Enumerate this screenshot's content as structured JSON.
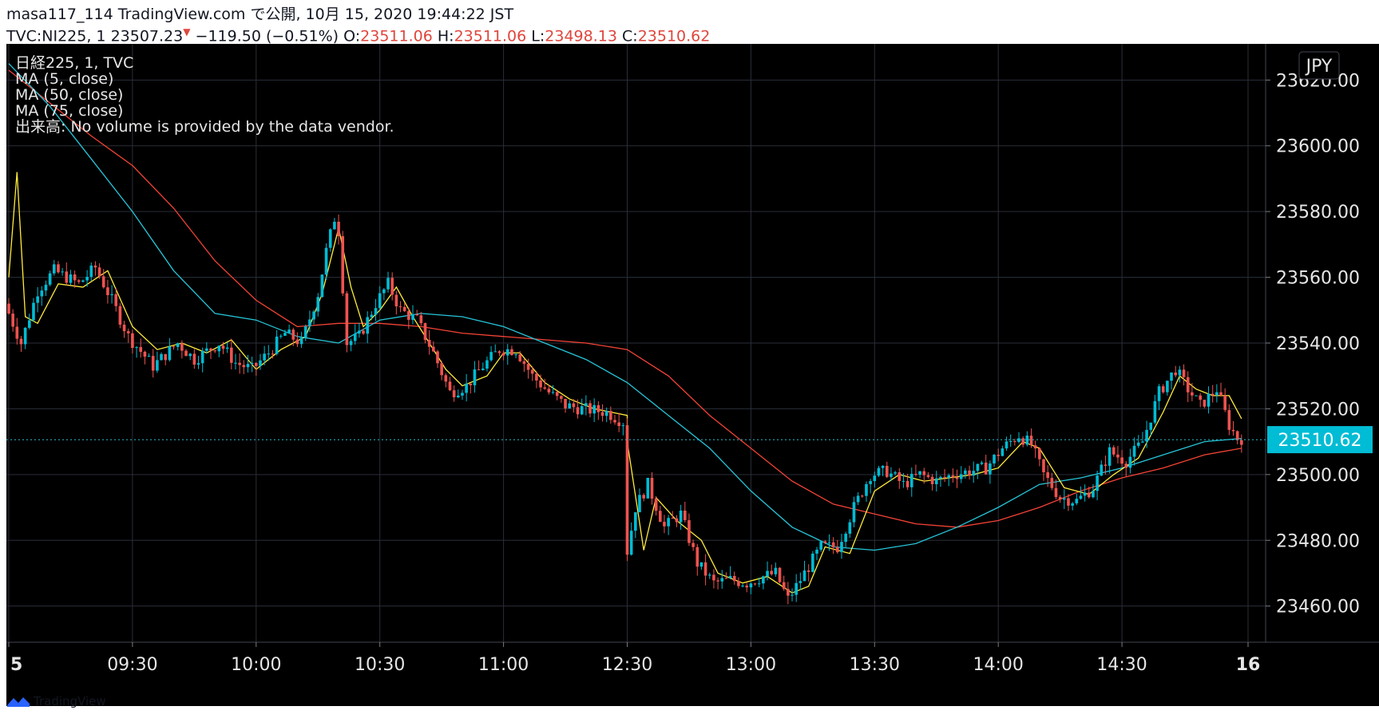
{
  "header": {
    "line1": "masa117_114 TradingView.com で公開, 10月 15, 2020 19:44:22 JST",
    "symbol": "TVC:NI225, 1",
    "price": "23507.23",
    "change": "−119.50 (−0.51%)",
    "o_label": "O:",
    "o": "23511.06",
    "h_label": "H:",
    "h": "23511.06",
    "l_label": "L:",
    "l": "23498.13",
    "c_label": "C:",
    "c": "23510.62"
  },
  "legend": [
    "日経225, 1, TVC",
    "MA (5, close)",
    "MA (50, close)",
    "MA (75, close)",
    "出来高: No volume is provided by the data vendor."
  ],
  "currency_label": "JPY",
  "last_price_label": "23510.62",
  "footer": {
    "brand": "TradingView"
  },
  "colors": {
    "background": "#000000",
    "up": "#00bcd4",
    "down": "#ef5350",
    "ma5": "#ffeb3b",
    "ma50": "#26c6da",
    "ma75": "#f44336",
    "grid": "#2a2e39"
  },
  "chart_data": {
    "type": "candlestick",
    "title": "日経225, 1, TVC",
    "x_tick_labels": [
      "5",
      "09:30",
      "10:00",
      "10:30",
      "11:00",
      "12:30",
      "13:00",
      "13:30",
      "14:00",
      "14:30",
      "16"
    ],
    "y_tick_labels": [
      "23620.00",
      "23600.00",
      "23580.00",
      "23560.00",
      "23540.00",
      "23520.00",
      "23500.00",
      "23480.00",
      "23460.00"
    ],
    "ylim": [
      23449,
      23631
    ],
    "last_price": 23510.62,
    "anchors": [
      {
        "t": "09:00",
        "v": 23552
      },
      {
        "t": "09:04",
        "v": 23540
      },
      {
        "t": "09:08",
        "v": 23556
      },
      {
        "t": "09:12",
        "v": 23562
      },
      {
        "t": "09:18",
        "v": 23558
      },
      {
        "t": "09:22",
        "v": 23563
      },
      {
        "t": "09:26",
        "v": 23553
      },
      {
        "t": "09:30",
        "v": 23542
      },
      {
        "t": "09:36",
        "v": 23533
      },
      {
        "t": "09:42",
        "v": 23540
      },
      {
        "t": "09:46",
        "v": 23535
      },
      {
        "t": "09:52",
        "v": 23540
      },
      {
        "t": "09:56",
        "v": 23534
      },
      {
        "t": "10:00",
        "v": 23532
      },
      {
        "t": "10:04",
        "v": 23537
      },
      {
        "t": "10:08",
        "v": 23543
      },
      {
        "t": "10:12",
        "v": 23540
      },
      {
        "t": "10:16",
        "v": 23555
      },
      {
        "t": "10:18",
        "v": 23568
      },
      {
        "t": "10:20",
        "v": 23578
      },
      {
        "t": "10:21",
        "v": 23574
      },
      {
        "t": "10:23",
        "v": 23540
      },
      {
        "t": "10:26",
        "v": 23542
      },
      {
        "t": "10:30",
        "v": 23552
      },
      {
        "t": "10:33",
        "v": 23558
      },
      {
        "t": "10:36",
        "v": 23550
      },
      {
        "t": "10:40",
        "v": 23547
      },
      {
        "t": "10:44",
        "v": 23537
      },
      {
        "t": "10:48",
        "v": 23525
      },
      {
        "t": "10:52",
        "v": 23527
      },
      {
        "t": "10:56",
        "v": 23533
      },
      {
        "t": "11:00",
        "v": 23538
      },
      {
        "t": "11:04",
        "v": 23538
      },
      {
        "t": "11:08",
        "v": 23530
      },
      {
        "t": "11:12",
        "v": 23525
      },
      {
        "t": "11:16",
        "v": 23521
      },
      {
        "t": "11:20",
        "v": 23520
      },
      {
        "t": "11:26",
        "v": 23519
      },
      {
        "t": "11:30",
        "v": 23516
      },
      {
        "t": "12:30",
        "v": 23470
      },
      {
        "t": "12:33",
        "v": 23490
      },
      {
        "t": "12:36",
        "v": 23497
      },
      {
        "t": "12:40",
        "v": 23484
      },
      {
        "t": "12:44",
        "v": 23488
      },
      {
        "t": "12:48",
        "v": 23473
      },
      {
        "t": "12:52",
        "v": 23467
      },
      {
        "t": "12:56",
        "v": 23468
      },
      {
        "t": "13:00",
        "v": 23467
      },
      {
        "t": "13:04",
        "v": 23469
      },
      {
        "t": "13:07",
        "v": 23470
      },
      {
        "t": "13:10",
        "v": 23462
      },
      {
        "t": "13:14",
        "v": 23470
      },
      {
        "t": "13:18",
        "v": 23478
      },
      {
        "t": "13:22",
        "v": 23478
      },
      {
        "t": "13:26",
        "v": 23490
      },
      {
        "t": "13:30",
        "v": 23500
      },
      {
        "t": "13:34",
        "v": 23501
      },
      {
        "t": "13:38",
        "v": 23497
      },
      {
        "t": "13:42",
        "v": 23500
      },
      {
        "t": "13:46",
        "v": 23498
      },
      {
        "t": "13:50",
        "v": 23500
      },
      {
        "t": "13:54",
        "v": 23501
      },
      {
        "t": "13:58",
        "v": 23502
      },
      {
        "t": "14:02",
        "v": 23508
      },
      {
        "t": "14:06",
        "v": 23512
      },
      {
        "t": "14:09",
        "v": 23509
      },
      {
        "t": "14:12",
        "v": 23500
      },
      {
        "t": "14:16",
        "v": 23493
      },
      {
        "t": "14:20",
        "v": 23492
      },
      {
        "t": "14:24",
        "v": 23496
      },
      {
        "t": "14:28",
        "v": 23507
      },
      {
        "t": "14:32",
        "v": 23504
      },
      {
        "t": "14:36",
        "v": 23510
      },
      {
        "t": "14:40",
        "v": 23525
      },
      {
        "t": "14:44",
        "v": 23532
      },
      {
        "t": "14:47",
        "v": 23526
      },
      {
        "t": "14:50",
        "v": 23521
      },
      {
        "t": "14:54",
        "v": 23526
      },
      {
        "t": "14:57",
        "v": 23515
      },
      {
        "t": "14:59",
        "v": 23511
      }
    ],
    "ma5": [
      {
        "t": "09:00",
        "v": 23560
      },
      {
        "t": "09:02",
        "v": 23592
      },
      {
        "t": "09:04",
        "v": 23548
      },
      {
        "t": "09:07",
        "v": 23546
      },
      {
        "t": "09:12",
        "v": 23558
      },
      {
        "t": "09:18",
        "v": 23557
      },
      {
        "t": "09:24",
        "v": 23562
      },
      {
        "t": "09:30",
        "v": 23545
      },
      {
        "t": "09:36",
        "v": 23538
      },
      {
        "t": "09:42",
        "v": 23540
      },
      {
        "t": "09:48",
        "v": 23537
      },
      {
        "t": "09:54",
        "v": 23541
      },
      {
        "t": "10:00",
        "v": 23532
      },
      {
        "t": "10:06",
        "v": 23538
      },
      {
        "t": "10:12",
        "v": 23542
      },
      {
        "t": "10:16",
        "v": 23555
      },
      {
        "t": "10:20",
        "v": 23575
      },
      {
        "t": "10:23",
        "v": 23557
      },
      {
        "t": "10:26",
        "v": 23545
      },
      {
        "t": "10:30",
        "v": 23550
      },
      {
        "t": "10:34",
        "v": 23557
      },
      {
        "t": "10:38",
        "v": 23548
      },
      {
        "t": "10:42",
        "v": 23540
      },
      {
        "t": "10:46",
        "v": 23532
      },
      {
        "t": "10:50",
        "v": 23527
      },
      {
        "t": "10:56",
        "v": 23530
      },
      {
        "t": "11:00",
        "v": 23537
      },
      {
        "t": "11:04",
        "v": 23537
      },
      {
        "t": "11:10",
        "v": 23528
      },
      {
        "t": "11:16",
        "v": 23523
      },
      {
        "t": "11:22",
        "v": 23520
      },
      {
        "t": "11:30",
        "v": 23518
      },
      {
        "t": "12:30",
        "v": 23510
      },
      {
        "t": "12:34",
        "v": 23477
      },
      {
        "t": "12:37",
        "v": 23493
      },
      {
        "t": "12:42",
        "v": 23486
      },
      {
        "t": "12:48",
        "v": 23480
      },
      {
        "t": "12:52",
        "v": 23470
      },
      {
        "t": "12:58",
        "v": 23467
      },
      {
        "t": "13:04",
        "v": 23469
      },
      {
        "t": "13:10",
        "v": 23464
      },
      {
        "t": "13:14",
        "v": 23466
      },
      {
        "t": "13:18",
        "v": 23478
      },
      {
        "t": "13:24",
        "v": 23476
      },
      {
        "t": "13:30",
        "v": 23495
      },
      {
        "t": "13:36",
        "v": 23500
      },
      {
        "t": "13:42",
        "v": 23498
      },
      {
        "t": "13:48",
        "v": 23499
      },
      {
        "t": "13:54",
        "v": 23500
      },
      {
        "t": "14:00",
        "v": 23502
      },
      {
        "t": "14:06",
        "v": 23510
      },
      {
        "t": "14:10",
        "v": 23508
      },
      {
        "t": "14:16",
        "v": 23496
      },
      {
        "t": "14:22",
        "v": 23494
      },
      {
        "t": "14:28",
        "v": 23500
      },
      {
        "t": "14:34",
        "v": 23505
      },
      {
        "t": "14:40",
        "v": 23519
      },
      {
        "t": "14:44",
        "v": 23530
      },
      {
        "t": "14:48",
        "v": 23526
      },
      {
        "t": "14:52",
        "v": 23524
      },
      {
        "t": "14:56",
        "v": 23524
      },
      {
        "t": "14:59",
        "v": 23517
      }
    ],
    "ma50": [
      {
        "t": "09:00",
        "v": 23625
      },
      {
        "t": "09:10",
        "v": 23612
      },
      {
        "t": "09:20",
        "v": 23596
      },
      {
        "t": "09:30",
        "v": 23580
      },
      {
        "t": "09:40",
        "v": 23562
      },
      {
        "t": "09:50",
        "v": 23549
      },
      {
        "t": "10:00",
        "v": 23547
      },
      {
        "t": "10:10",
        "v": 23542
      },
      {
        "t": "10:20",
        "v": 23540
      },
      {
        "t": "10:30",
        "v": 23547
      },
      {
        "t": "10:40",
        "v": 23549
      },
      {
        "t": "10:50",
        "v": 23548
      },
      {
        "t": "11:00",
        "v": 23545
      },
      {
        "t": "11:10",
        "v": 23540
      },
      {
        "t": "11:20",
        "v": 23535
      },
      {
        "t": "11:30",
        "v": 23528
      },
      {
        "t": "12:30",
        "v": 23528
      },
      {
        "t": "12:40",
        "v": 23518
      },
      {
        "t": "12:50",
        "v": 23508
      },
      {
        "t": "13:00",
        "v": 23495
      },
      {
        "t": "13:10",
        "v": 23484
      },
      {
        "t": "13:20",
        "v": 23478
      },
      {
        "t": "13:30",
        "v": 23477
      },
      {
        "t": "13:40",
        "v": 23479
      },
      {
        "t": "13:50",
        "v": 23484
      },
      {
        "t": "14:00",
        "v": 23490
      },
      {
        "t": "14:10",
        "v": 23497
      },
      {
        "t": "14:20",
        "v": 23499
      },
      {
        "t": "14:30",
        "v": 23502
      },
      {
        "t": "14:40",
        "v": 23506
      },
      {
        "t": "14:50",
        "v": 23510
      },
      {
        "t": "14:59",
        "v": 23511
      }
    ],
    "ma75": [
      {
        "t": "09:00",
        "v": 23623
      },
      {
        "t": "09:10",
        "v": 23613
      },
      {
        "t": "09:20",
        "v": 23603
      },
      {
        "t": "09:30",
        "v": 23594
      },
      {
        "t": "09:40",
        "v": 23581
      },
      {
        "t": "09:50",
        "v": 23565
      },
      {
        "t": "10:00",
        "v": 23553
      },
      {
        "t": "10:10",
        "v": 23545
      },
      {
        "t": "10:20",
        "v": 23546
      },
      {
        "t": "10:30",
        "v": 23546
      },
      {
        "t": "10:40",
        "v": 23545
      },
      {
        "t": "10:50",
        "v": 23543
      },
      {
        "t": "11:00",
        "v": 23542
      },
      {
        "t": "11:10",
        "v": 23541
      },
      {
        "t": "11:20",
        "v": 23540
      },
      {
        "t": "11:30",
        "v": 23538
      },
      {
        "t": "12:30",
        "v": 23538
      },
      {
        "t": "12:40",
        "v": 23530
      },
      {
        "t": "12:50",
        "v": 23518
      },
      {
        "t": "13:00",
        "v": 23508
      },
      {
        "t": "13:10",
        "v": 23498
      },
      {
        "t": "13:20",
        "v": 23491
      },
      {
        "t": "13:30",
        "v": 23488
      },
      {
        "t": "13:40",
        "v": 23485
      },
      {
        "t": "13:50",
        "v": 23484
      },
      {
        "t": "14:00",
        "v": 23486
      },
      {
        "t": "14:10",
        "v": 23490
      },
      {
        "t": "14:20",
        "v": 23495
      },
      {
        "t": "14:30",
        "v": 23499
      },
      {
        "t": "14:40",
        "v": 23502
      },
      {
        "t": "14:50",
        "v": 23506
      },
      {
        "t": "14:59",
        "v": 23508
      }
    ]
  }
}
